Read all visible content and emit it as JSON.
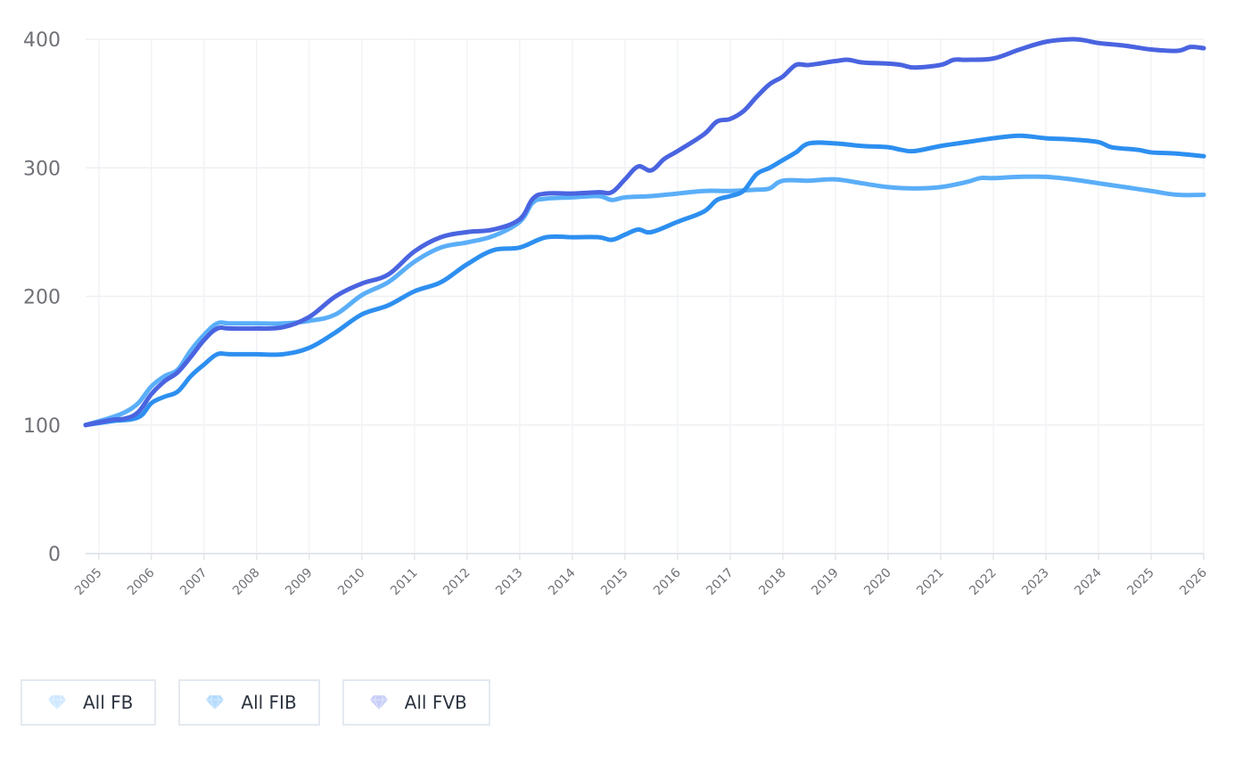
{
  "chart_data": {
    "type": "line",
    "title": "",
    "xlabel": "",
    "ylabel": "",
    "ylim": [
      0,
      400
    ],
    "xlim": [
      2004.75,
      2026
    ],
    "yticks": [
      "0",
      "100",
      "200",
      "300",
      "400"
    ],
    "xticks": [
      "2005",
      "2006",
      "2007",
      "2008",
      "2009",
      "2010",
      "2011",
      "2012",
      "2013",
      "2014",
      "2015",
      "2016",
      "2017",
      "2018",
      "2019",
      "2020",
      "2021",
      "2022",
      "2023",
      "2024",
      "2025",
      "2026"
    ],
    "grid": true,
    "legend_position": "bottom-left",
    "series": [
      {
        "name": "All FB",
        "color": "#5aaef8",
        "icon": "diamond-icon",
        "icon_color": "#cfe8ff",
        "points": [
          [
            2004.75,
            100
          ],
          [
            2005.25,
            106
          ],
          [
            2005.5,
            110
          ],
          [
            2005.75,
            117
          ],
          [
            2006,
            130
          ],
          [
            2006.25,
            138
          ],
          [
            2006.5,
            143
          ],
          [
            2006.75,
            158
          ],
          [
            2007,
            170
          ],
          [
            2007.25,
            179
          ],
          [
            2007.5,
            179
          ],
          [
            2008,
            179
          ],
          [
            2008.5,
            179
          ],
          [
            2009,
            181
          ],
          [
            2009.5,
            186
          ],
          [
            2010,
            201
          ],
          [
            2010.5,
            211
          ],
          [
            2011,
            227
          ],
          [
            2011.5,
            238
          ],
          [
            2012,
            242
          ],
          [
            2012.5,
            247
          ],
          [
            2013,
            258
          ],
          [
            2013.25,
            273
          ],
          [
            2013.5,
            276
          ],
          [
            2014,
            277
          ],
          [
            2014.5,
            278
          ],
          [
            2014.75,
            275
          ],
          [
            2015,
            277
          ],
          [
            2015.5,
            278
          ],
          [
            2016,
            280
          ],
          [
            2016.5,
            282
          ],
          [
            2017,
            282
          ],
          [
            2017.5,
            283
          ],
          [
            2017.75,
            284
          ],
          [
            2018,
            290
          ],
          [
            2018.5,
            290
          ],
          [
            2019,
            291
          ],
          [
            2019.5,
            288
          ],
          [
            2020,
            285
          ],
          [
            2020.5,
            284
          ],
          [
            2021,
            285
          ],
          [
            2021.5,
            289
          ],
          [
            2021.75,
            292
          ],
          [
            2022,
            292
          ],
          [
            2022.5,
            293
          ],
          [
            2023,
            293
          ],
          [
            2023.5,
            291
          ],
          [
            2024,
            288
          ],
          [
            2024.5,
            285
          ],
          [
            2025,
            282
          ],
          [
            2025.5,
            279
          ],
          [
            2026,
            279
          ]
        ]
      },
      {
        "name": "All FIB",
        "color": "#2d8ff0",
        "icon": "diamond-icon",
        "icon_color": "#b5dbff",
        "points": [
          [
            2004.75,
            100
          ],
          [
            2005.25,
            103
          ],
          [
            2005.75,
            106
          ],
          [
            2006,
            117
          ],
          [
            2006.25,
            122
          ],
          [
            2006.5,
            126
          ],
          [
            2006.75,
            138
          ],
          [
            2007,
            147
          ],
          [
            2007.25,
            155
          ],
          [
            2007.5,
            155
          ],
          [
            2008,
            155
          ],
          [
            2008.5,
            155
          ],
          [
            2009,
            160
          ],
          [
            2009.5,
            172
          ],
          [
            2010,
            186
          ],
          [
            2010.5,
            193
          ],
          [
            2011,
            204
          ],
          [
            2011.5,
            211
          ],
          [
            2012,
            225
          ],
          [
            2012.5,
            236
          ],
          [
            2013,
            238
          ],
          [
            2013.5,
            246
          ],
          [
            2014,
            246
          ],
          [
            2014.5,
            246
          ],
          [
            2014.75,
            244
          ],
          [
            2015,
            248
          ],
          [
            2015.25,
            252
          ],
          [
            2015.5,
            250
          ],
          [
            2016,
            258
          ],
          [
            2016.5,
            266
          ],
          [
            2016.75,
            275
          ],
          [
            2017,
            278
          ],
          [
            2017.25,
            282
          ],
          [
            2017.5,
            295
          ],
          [
            2017.75,
            300
          ],
          [
            2018,
            306
          ],
          [
            2018.25,
            312
          ],
          [
            2018.5,
            319
          ],
          [
            2019,
            319
          ],
          [
            2019.5,
            317
          ],
          [
            2020,
            316
          ],
          [
            2020.25,
            314
          ],
          [
            2020.5,
            313
          ],
          [
            2021,
            317
          ],
          [
            2021.5,
            320
          ],
          [
            2022,
            323
          ],
          [
            2022.5,
            325
          ],
          [
            2023,
            323
          ],
          [
            2023.5,
            322
          ],
          [
            2024,
            320
          ],
          [
            2024.25,
            316
          ],
          [
            2024.75,
            314
          ],
          [
            2025,
            312
          ],
          [
            2025.5,
            311
          ],
          [
            2026,
            309
          ]
        ]
      },
      {
        "name": "All FVB",
        "color": "#4a64e0",
        "icon": "diamond-icon",
        "icon_color": "#c7cff7",
        "points": [
          [
            2004.75,
            100
          ],
          [
            2005.25,
            104
          ],
          [
            2005.5,
            105
          ],
          [
            2005.75,
            110
          ],
          [
            2006,
            124
          ],
          [
            2006.25,
            134
          ],
          [
            2006.5,
            141
          ],
          [
            2006.75,
            153
          ],
          [
            2007,
            166
          ],
          [
            2007.25,
            175
          ],
          [
            2007.5,
            175
          ],
          [
            2008,
            175
          ],
          [
            2008.5,
            176
          ],
          [
            2009,
            184
          ],
          [
            2009.5,
            200
          ],
          [
            2010,
            210
          ],
          [
            2010.5,
            217
          ],
          [
            2011,
            235
          ],
          [
            2011.5,
            246
          ],
          [
            2012,
            250
          ],
          [
            2012.5,
            252
          ],
          [
            2013,
            260
          ],
          [
            2013.25,
            276
          ],
          [
            2013.5,
            280
          ],
          [
            2014,
            280
          ],
          [
            2014.5,
            281
          ],
          [
            2014.75,
            281
          ],
          [
            2015,
            291
          ],
          [
            2015.25,
            301
          ],
          [
            2015.5,
            298
          ],
          [
            2015.75,
            307
          ],
          [
            2016,
            313
          ],
          [
            2016.5,
            326
          ],
          [
            2016.75,
            336
          ],
          [
            2017,
            338
          ],
          [
            2017.25,
            344
          ],
          [
            2017.5,
            355
          ],
          [
            2017.75,
            365
          ],
          [
            2018,
            371
          ],
          [
            2018.25,
            380
          ],
          [
            2018.5,
            380
          ],
          [
            2019,
            383
          ],
          [
            2019.25,
            384
          ],
          [
            2019.5,
            382
          ],
          [
            2020,
            381
          ],
          [
            2020.25,
            380
          ],
          [
            2020.5,
            378
          ],
          [
            2021,
            380
          ],
          [
            2021.25,
            384
          ],
          [
            2021.5,
            384
          ],
          [
            2022,
            385
          ],
          [
            2022.5,
            392
          ],
          [
            2023,
            398
          ],
          [
            2023.5,
            400
          ],
          [
            2023.75,
            399
          ],
          [
            2024,
            397
          ],
          [
            2024.5,
            395
          ],
          [
            2025,
            392
          ],
          [
            2025.5,
            391
          ],
          [
            2025.75,
            394
          ],
          [
            2026,
            393
          ]
        ]
      }
    ]
  }
}
